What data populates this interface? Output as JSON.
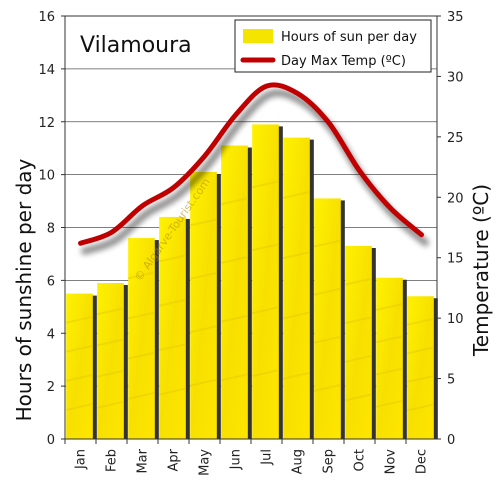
{
  "chart_data": {
    "type": "bar",
    "title": "Vilamoura",
    "categories": [
      "Jan",
      "Feb",
      "Mar",
      "Apr",
      "May",
      "Jun",
      "Jul",
      "Aug",
      "Sep",
      "Oct",
      "Nov",
      "Dec"
    ],
    "series": [
      {
        "name": "Hours of sun per day",
        "type": "bar",
        "axis": "left",
        "color": "#f5e400",
        "values": [
          5.5,
          5.9,
          7.6,
          8.4,
          10.1,
          11.1,
          11.9,
          11.4,
          9.1,
          7.3,
          6.1,
          5.4
        ]
      },
      {
        "name": "Day Max Temp (ºC)",
        "type": "line",
        "axis": "right",
        "color": "#c00000",
        "values": [
          16.2,
          17.1,
          19.3,
          20.8,
          23.4,
          26.8,
          29.2,
          28.6,
          26.2,
          22.2,
          19.1,
          16.9
        ]
      }
    ],
    "ylabel_left": "Hours of sunshine per day",
    "ylabel_right": "Temperature (ºC)",
    "ylim_left": [
      0,
      16
    ],
    "yticks_left": [
      "0",
      "2",
      "4",
      "6",
      "8",
      "10",
      "12",
      "14",
      "16"
    ],
    "ylim_right": [
      0,
      35
    ],
    "yticks_right": [
      "0",
      "5",
      "10",
      "15",
      "20",
      "25",
      "30",
      "35"
    ],
    "grid": true,
    "legend_position": "top-right",
    "watermark": "© Algarve-Tourist.com"
  }
}
